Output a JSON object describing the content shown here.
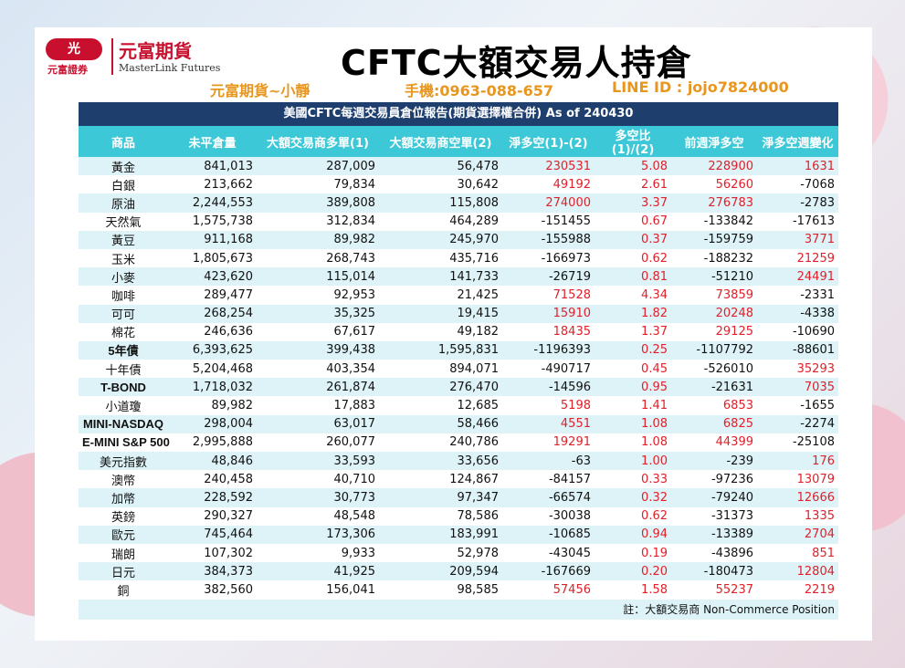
{
  "logo": {
    "badge": "光",
    "sub": "元富證券",
    "cn": "元富期貨",
    "en": "MasterLink Futures"
  },
  "title": "CFTC大額交易人持倉",
  "contact": {
    "name": "元富期貨~小靜",
    "phone": "手機:0963-088-657",
    "line": "LINE ID : jojo7824000"
  },
  "table": {
    "header": "美國CFTC每週交易員倉位報告(期貨選擇權合併) As of  240430",
    "columns": [
      "商品",
      "未平倉量",
      "大額交易商多單(1)",
      "大額交易商空單(2)",
      "淨多空(1)-(2)",
      "多空比(1)/(2)",
      "前週淨多空",
      "淨多空週變化"
    ],
    "rows": [
      {
        "name": "黃金",
        "oi": "841,013",
        "long": "287,009",
        "short": "56,478",
        "net": "230531",
        "ratio": "5.08",
        "prev": "228900",
        "chg": "1631",
        "net_red": true,
        "ratio_red": true,
        "prev_red": true,
        "chg_red": true,
        "bold": false
      },
      {
        "name": "白銀",
        "oi": "213,662",
        "long": "79,834",
        "short": "30,642",
        "net": "49192",
        "ratio": "2.61",
        "prev": "56260",
        "chg": "-7068",
        "net_red": true,
        "ratio_red": true,
        "prev_red": true,
        "chg_red": false,
        "bold": false
      },
      {
        "name": "原油",
        "oi": "2,244,553",
        "long": "389,808",
        "short": "115,808",
        "net": "274000",
        "ratio": "3.37",
        "prev": "276783",
        "chg": "-2783",
        "net_red": true,
        "ratio_red": true,
        "prev_red": true,
        "chg_red": false,
        "bold": false
      },
      {
        "name": "天然氣",
        "oi": "1,575,738",
        "long": "312,834",
        "short": "464,289",
        "net": "-151455",
        "ratio": "0.67",
        "prev": "-133842",
        "chg": "-17613",
        "net_red": false,
        "ratio_red": true,
        "prev_red": false,
        "chg_red": false,
        "bold": false
      },
      {
        "name": "黃豆",
        "oi": "911,168",
        "long": "89,982",
        "short": "245,970",
        "net": "-155988",
        "ratio": "0.37",
        "prev": "-159759",
        "chg": "3771",
        "net_red": false,
        "ratio_red": true,
        "prev_red": false,
        "chg_red": true,
        "bold": false
      },
      {
        "name": "玉米",
        "oi": "1,805,673",
        "long": "268,743",
        "short": "435,716",
        "net": "-166973",
        "ratio": "0.62",
        "prev": "-188232",
        "chg": "21259",
        "net_red": false,
        "ratio_red": true,
        "prev_red": false,
        "chg_red": true,
        "bold": false
      },
      {
        "name": "小麥",
        "oi": "423,620",
        "long": "115,014",
        "short": "141,733",
        "net": "-26719",
        "ratio": "0.81",
        "prev": "-51210",
        "chg": "24491",
        "net_red": false,
        "ratio_red": true,
        "prev_red": false,
        "chg_red": true,
        "bold": false
      },
      {
        "name": "咖啡",
        "oi": "289,477",
        "long": "92,953",
        "short": "21,425",
        "net": "71528",
        "ratio": "4.34",
        "prev": "73859",
        "chg": "-2331",
        "net_red": true,
        "ratio_red": true,
        "prev_red": true,
        "chg_red": false,
        "bold": false
      },
      {
        "name": "可可",
        "oi": "268,254",
        "long": "35,325",
        "short": "19,415",
        "net": "15910",
        "ratio": "1.82",
        "prev": "20248",
        "chg": "-4338",
        "net_red": true,
        "ratio_red": true,
        "prev_red": true,
        "chg_red": false,
        "bold": false
      },
      {
        "name": "棉花",
        "oi": "246,636",
        "long": "67,617",
        "short": "49,182",
        "net": "18435",
        "ratio": "1.37",
        "prev": "29125",
        "chg": "-10690",
        "net_red": true,
        "ratio_red": true,
        "prev_red": true,
        "chg_red": false,
        "bold": false
      },
      {
        "name": "5年債",
        "oi": "6,393,625",
        "long": "399,438",
        "short": "1,595,831",
        "net": "-1196393",
        "ratio": "0.25",
        "prev": "-1107792",
        "chg": "-88601",
        "net_red": false,
        "ratio_red": true,
        "prev_red": false,
        "chg_red": false,
        "bold": true
      },
      {
        "name": "十年債",
        "oi": "5,204,468",
        "long": "403,354",
        "short": "894,071",
        "net": "-490717",
        "ratio": "0.45",
        "prev": "-526010",
        "chg": "35293",
        "net_red": false,
        "ratio_red": true,
        "prev_red": false,
        "chg_red": true,
        "bold": false
      },
      {
        "name": "T-BOND",
        "oi": "1,718,032",
        "long": "261,874",
        "short": "276,470",
        "net": "-14596",
        "ratio": "0.95",
        "prev": "-21631",
        "chg": "7035",
        "net_red": false,
        "ratio_red": true,
        "prev_red": false,
        "chg_red": true,
        "bold": true
      },
      {
        "name": "小道瓊",
        "oi": "89,982",
        "long": "17,883",
        "short": "12,685",
        "net": "5198",
        "ratio": "1.41",
        "prev": "6853",
        "chg": "-1655",
        "net_red": true,
        "ratio_red": true,
        "prev_red": true,
        "chg_red": false,
        "bold": false
      },
      {
        "name": "MINI-NASDAQ",
        "oi": "298,004",
        "long": "63,017",
        "short": "58,466",
        "net": "4551",
        "ratio": "1.08",
        "prev": "6825",
        "chg": "-2274",
        "net_red": true,
        "ratio_red": true,
        "prev_red": true,
        "chg_red": false,
        "bold": true
      },
      {
        "name": "E-MINI S&P 500",
        "oi": "2,995,888",
        "long": "260,077",
        "short": "240,786",
        "net": "19291",
        "ratio": "1.08",
        "prev": "44399",
        "chg": "-25108",
        "net_red": true,
        "ratio_red": true,
        "prev_red": true,
        "chg_red": false,
        "bold": true
      },
      {
        "name": "美元指數",
        "oi": "48,846",
        "long": "33,593",
        "short": "33,656",
        "net": "-63",
        "ratio": "1.00",
        "prev": "-239",
        "chg": "176",
        "net_red": false,
        "ratio_red": true,
        "prev_red": false,
        "chg_red": true,
        "bold": false
      },
      {
        "name": "澳幣",
        "oi": "240,458",
        "long": "40,710",
        "short": "124,867",
        "net": "-84157",
        "ratio": "0.33",
        "prev": "-97236",
        "chg": "13079",
        "net_red": false,
        "ratio_red": true,
        "prev_red": false,
        "chg_red": true,
        "bold": false
      },
      {
        "name": "加幣",
        "oi": "228,592",
        "long": "30,773",
        "short": "97,347",
        "net": "-66574",
        "ratio": "0.32",
        "prev": "-79240",
        "chg": "12666",
        "net_red": false,
        "ratio_red": true,
        "prev_red": false,
        "chg_red": true,
        "bold": false
      },
      {
        "name": "英鎊",
        "oi": "290,327",
        "long": "48,548",
        "short": "78,586",
        "net": "-30038",
        "ratio": "0.62",
        "prev": "-31373",
        "chg": "1335",
        "net_red": false,
        "ratio_red": true,
        "prev_red": false,
        "chg_red": true,
        "bold": false
      },
      {
        "name": "歐元",
        "oi": "745,464",
        "long": "173,306",
        "short": "183,991",
        "net": "-10685",
        "ratio": "0.94",
        "prev": "-13389",
        "chg": "2704",
        "net_red": false,
        "ratio_red": true,
        "prev_red": false,
        "chg_red": true,
        "bold": false
      },
      {
        "name": "瑞朗",
        "oi": "107,302",
        "long": "9,933",
        "short": "52,978",
        "net": "-43045",
        "ratio": "0.19",
        "prev": "-43896",
        "chg": "851",
        "net_red": false,
        "ratio_red": true,
        "prev_red": false,
        "chg_red": true,
        "bold": false
      },
      {
        "name": "日元",
        "oi": "384,373",
        "long": "41,925",
        "short": "209,594",
        "net": "-167669",
        "ratio": "0.20",
        "prev": "-180473",
        "chg": "12804",
        "net_red": false,
        "ratio_red": true,
        "prev_red": false,
        "chg_red": true,
        "bold": false
      },
      {
        "name": "銅",
        "oi": "382,560",
        "long": "156,041",
        "short": "98,585",
        "net": "57456",
        "ratio": "1.58",
        "prev": "55237",
        "chg": "2219",
        "net_red": true,
        "ratio_red": true,
        "prev_red": true,
        "chg_red": true,
        "bold": false
      }
    ],
    "note": "註：大額交易商 Non-Commerce Position"
  },
  "colors": {
    "header_bg": "#1e3f6e",
    "col_header_bg": "#3cc8d7",
    "row_alt_bg": "#ddf3f8",
    "positive": "#e0202a",
    "brand": "#c8102e",
    "contact": "#e8961e"
  }
}
